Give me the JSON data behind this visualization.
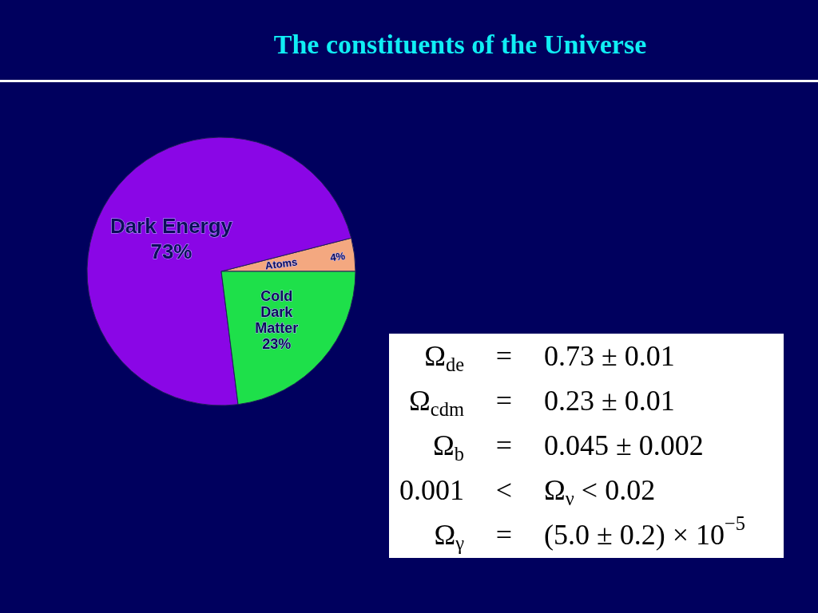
{
  "chart_data": {
    "type": "pie",
    "title": "The constituents of the Universe",
    "categories": [
      "Atoms",
      "Dark Energy",
      "Cold Dark Matter"
    ],
    "values": [
      4,
      73,
      23
    ],
    "colors": [
      "#f4a880",
      "#8a06e6",
      "#1ee04a"
    ],
    "value_labels": [
      "4%",
      "73%",
      "23%"
    ],
    "annotations": [
      "Ω$_{de}$ = 0.73 ± 0.01",
      "Ω$_{cdm}$ = 0.23 ± 0.01",
      "Ω$_{b}$ = 0.045 ± 0.002",
      "0.001 < Ω$_{ν}$ < 0.02",
      "Ω$_{γ}$ = (5.0 ± 0.2) × 10$^{−5}$"
    ]
  }
}
